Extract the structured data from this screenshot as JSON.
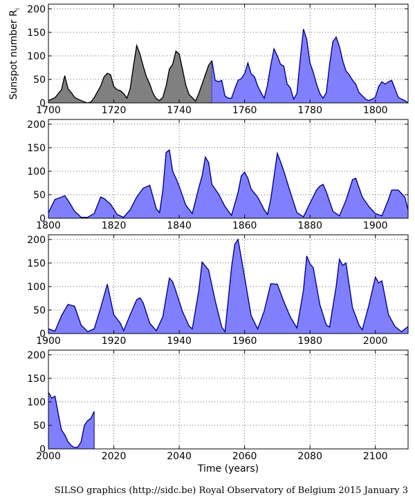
{
  "chart_data": {
    "type": "area",
    "ylabel": "Sunspot number R",
    "ylabel_subscript": "i",
    "xlabel": "Time (years)",
    "y_ticks": [
      0,
      50,
      100,
      150,
      200
    ],
    "ylim": [
      0,
      210
    ],
    "grid": "dotted",
    "style": {
      "observed_fill": "#8080ff",
      "observed_line": "#00008b",
      "reconstructed_fill": "#808080",
      "reconstructed_line": "#000000"
    },
    "panels": [
      {
        "xlim": [
          1700,
          1810
        ],
        "x_ticks": [
          1700,
          1720,
          1740,
          1760,
          1780,
          1800
        ],
        "gray_until": 1750,
        "points": [
          [
            1700,
            5
          ],
          [
            1702,
            11
          ],
          [
            1704,
            28
          ],
          [
            1705,
            58
          ],
          [
            1706,
            30
          ],
          [
            1707,
            22
          ],
          [
            1708,
            12
          ],
          [
            1709,
            8
          ],
          [
            1711,
            2
          ],
          [
            1712,
            0
          ],
          [
            1713,
            2
          ],
          [
            1714,
            11
          ],
          [
            1716,
            36
          ],
          [
            1717,
            55
          ],
          [
            1718,
            63
          ],
          [
            1719,
            60
          ],
          [
            1720,
            35
          ],
          [
            1721,
            28
          ],
          [
            1722,
            26
          ],
          [
            1723,
            20
          ],
          [
            1724,
            10
          ],
          [
            1725,
            30
          ],
          [
            1726,
            78
          ],
          [
            1727,
            122
          ],
          [
            1728,
            104
          ],
          [
            1729,
            78
          ],
          [
            1730,
            55
          ],
          [
            1731,
            40
          ],
          [
            1732,
            20
          ],
          [
            1733,
            9
          ],
          [
            1734,
            5
          ],
          [
            1735,
            12
          ],
          [
            1736,
            36
          ],
          [
            1737,
            72
          ],
          [
            1738,
            82
          ],
          [
            1739,
            110
          ],
          [
            1740,
            104
          ],
          [
            1741,
            72
          ],
          [
            1742,
            38
          ],
          [
            1743,
            18
          ],
          [
            1744,
            11
          ],
          [
            1745,
            4
          ],
          [
            1746,
            20
          ],
          [
            1747,
            40
          ],
          [
            1748,
            60
          ],
          [
            1749,
            80
          ],
          [
            1750,
            90
          ],
          [
            1751,
            48
          ],
          [
            1752,
            45
          ],
          [
            1753,
            48
          ],
          [
            1754,
            15
          ],
          [
            1755,
            10
          ],
          [
            1756,
            10
          ],
          [
            1757,
            30
          ],
          [
            1758,
            48
          ],
          [
            1759,
            52
          ],
          [
            1760,
            62
          ],
          [
            1761,
            85
          ],
          [
            1762,
            62
          ],
          [
            1763,
            56
          ],
          [
            1764,
            36
          ],
          [
            1765,
            22
          ],
          [
            1766,
            10
          ],
          [
            1767,
            38
          ],
          [
            1768,
            80
          ],
          [
            1769,
            115
          ],
          [
            1770,
            100
          ],
          [
            1771,
            82
          ],
          [
            1772,
            78
          ],
          [
            1773,
            40
          ],
          [
            1774,
            32
          ],
          [
            1775,
            8
          ],
          [
            1776,
            20
          ],
          [
            1777,
            92
          ],
          [
            1778,
            157
          ],
          [
            1779,
            135
          ],
          [
            1780,
            85
          ],
          [
            1781,
            65
          ],
          [
            1782,
            40
          ],
          [
            1783,
            20
          ],
          [
            1784,
            10
          ],
          [
            1785,
            22
          ],
          [
            1786,
            82
          ],
          [
            1787,
            130
          ],
          [
            1788,
            140
          ],
          [
            1789,
            120
          ],
          [
            1790,
            90
          ],
          [
            1791,
            68
          ],
          [
            1792,
            60
          ],
          [
            1793,
            48
          ],
          [
            1794,
            40
          ],
          [
            1795,
            22
          ],
          [
            1796,
            15
          ],
          [
            1797,
            8
          ],
          [
            1798,
            5
          ],
          [
            1799,
            8
          ],
          [
            1800,
            12
          ],
          [
            1801,
            35
          ],
          [
            1802,
            45
          ],
          [
            1803,
            40
          ],
          [
            1804,
            45
          ],
          [
            1805,
            48
          ],
          [
            1806,
            30
          ],
          [
            1807,
            12
          ],
          [
            1808,
            8
          ],
          [
            1809,
            5
          ],
          [
            1810,
            0
          ]
        ]
      },
      {
        "xlim": [
          1800,
          1910
        ],
        "x_ticks": [
          1800,
          1820,
          1840,
          1860,
          1880,
          1900
        ],
        "gray_until": null,
        "points": [
          [
            1800,
            12
          ],
          [
            1802,
            40
          ],
          [
            1804,
            45
          ],
          [
            1805,
            48
          ],
          [
            1806,
            38
          ],
          [
            1808,
            15
          ],
          [
            1810,
            2
          ],
          [
            1812,
            2
          ],
          [
            1814,
            10
          ],
          [
            1816,
            45
          ],
          [
            1817,
            42
          ],
          [
            1819,
            30
          ],
          [
            1821,
            8
          ],
          [
            1823,
            2
          ],
          [
            1825,
            18
          ],
          [
            1827,
            45
          ],
          [
            1829,
            64
          ],
          [
            1831,
            70
          ],
          [
            1833,
            20
          ],
          [
            1834,
            12
          ],
          [
            1835,
            60
          ],
          [
            1836,
            140
          ],
          [
            1837,
            145
          ],
          [
            1838,
            100
          ],
          [
            1839,
            85
          ],
          [
            1840,
            68
          ],
          [
            1842,
            28
          ],
          [
            1844,
            10
          ],
          [
            1846,
            65
          ],
          [
            1847,
            90
          ],
          [
            1848,
            130
          ],
          [
            1849,
            118
          ],
          [
            1850,
            72
          ],
          [
            1852,
            52
          ],
          [
            1854,
            25
          ],
          [
            1856,
            6
          ],
          [
            1858,
            55
          ],
          [
            1859,
            90
          ],
          [
            1860,
            98
          ],
          [
            1861,
            85
          ],
          [
            1862,
            62
          ],
          [
            1864,
            45
          ],
          [
            1866,
            18
          ],
          [
            1867,
            8
          ],
          [
            1868,
            40
          ],
          [
            1870,
            138
          ],
          [
            1871,
            120
          ],
          [
            1872,
            100
          ],
          [
            1874,
            55
          ],
          [
            1876,
            12
          ],
          [
            1878,
            3
          ],
          [
            1880,
            32
          ],
          [
            1882,
            60
          ],
          [
            1883,
            68
          ],
          [
            1884,
            72
          ],
          [
            1885,
            56
          ],
          [
            1887,
            15
          ],
          [
            1889,
            5
          ],
          [
            1891,
            38
          ],
          [
            1893,
            82
          ],
          [
            1894,
            85
          ],
          [
            1896,
            45
          ],
          [
            1898,
            25
          ],
          [
            1900,
            10
          ],
          [
            1902,
            5
          ],
          [
            1904,
            40
          ],
          [
            1905,
            60
          ],
          [
            1907,
            60
          ],
          [
            1909,
            45
          ],
          [
            1910,
            18
          ]
        ]
      },
      {
        "xlim": [
          1900,
          2010
        ],
        "x_ticks": [
          1900,
          1920,
          1940,
          1960,
          1980,
          2000
        ],
        "gray_until": null,
        "points": [
          [
            1900,
            10
          ],
          [
            1902,
            5
          ],
          [
            1904,
            38
          ],
          [
            1906,
            62
          ],
          [
            1908,
            58
          ],
          [
            1910,
            18
          ],
          [
            1912,
            4
          ],
          [
            1914,
            10
          ],
          [
            1916,
            55
          ],
          [
            1918,
            105
          ],
          [
            1920,
            40
          ],
          [
            1922,
            22
          ],
          [
            1923,
            6
          ],
          [
            1925,
            40
          ],
          [
            1927,
            72
          ],
          [
            1928,
            76
          ],
          [
            1929,
            65
          ],
          [
            1931,
            22
          ],
          [
            1933,
            6
          ],
          [
            1935,
            36
          ],
          [
            1937,
            118
          ],
          [
            1938,
            110
          ],
          [
            1939,
            90
          ],
          [
            1941,
            47
          ],
          [
            1943,
            16
          ],
          [
            1944,
            10
          ],
          [
            1946,
            92
          ],
          [
            1947,
            152
          ],
          [
            1949,
            135
          ],
          [
            1951,
            70
          ],
          [
            1953,
            14
          ],
          [
            1954,
            4
          ],
          [
            1956,
            140
          ],
          [
            1957,
            190
          ],
          [
            1958,
            200
          ],
          [
            1959,
            160
          ],
          [
            1960,
            120
          ],
          [
            1962,
            38
          ],
          [
            1964,
            10
          ],
          [
            1966,
            48
          ],
          [
            1968,
            106
          ],
          [
            1970,
            105
          ],
          [
            1972,
            68
          ],
          [
            1974,
            35
          ],
          [
            1976,
            12
          ],
          [
            1978,
            92
          ],
          [
            1979,
            165
          ],
          [
            1980,
            148
          ],
          [
            1981,
            140
          ],
          [
            1983,
            62
          ],
          [
            1985,
            18
          ],
          [
            1986,
            14
          ],
          [
            1988,
            100
          ],
          [
            1989,
            158
          ],
          [
            1990,
            145
          ],
          [
            1991,
            150
          ],
          [
            1993,
            55
          ],
          [
            1995,
            18
          ],
          [
            1996,
            8
          ],
          [
            1998,
            60
          ],
          [
            2000,
            120
          ],
          [
            2001,
            108
          ],
          [
            2002,
            112
          ],
          [
            2004,
            40
          ],
          [
            2006,
            15
          ],
          [
            2008,
            4
          ],
          [
            2010,
            15
          ]
        ]
      },
      {
        "xlim": [
          2000,
          2110
        ],
        "x_ticks": [
          2000,
          2020,
          2040,
          2060,
          2080,
          2100
        ],
        "gray_until": null,
        "points": [
          [
            2000,
            120
          ],
          [
            2001,
            108
          ],
          [
            2002,
            112
          ],
          [
            2003,
            75
          ],
          [
            2004,
            40
          ],
          [
            2005,
            30
          ],
          [
            2006,
            15
          ],
          [
            2007,
            7
          ],
          [
            2008,
            3
          ],
          [
            2009,
            4
          ],
          [
            2010,
            15
          ],
          [
            2011,
            50
          ],
          [
            2012,
            60
          ],
          [
            2013,
            65
          ],
          [
            2014,
            80
          ]
        ]
      }
    ]
  },
  "credit": "SILSO graphics (http://sidc.be)  Royal Observatory of Belgium  2015 January 3"
}
